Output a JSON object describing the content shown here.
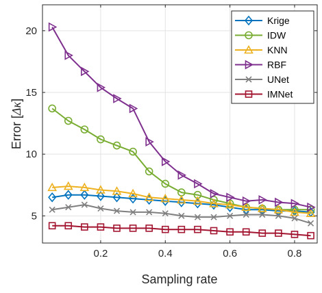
{
  "chart_data": {
    "type": "line",
    "xlabel": "Sampling rate",
    "ylabel_prefix": "Error [",
    "ylabel_symbol": "Δκ",
    "ylabel_suffix": "]",
    "xlim": [
      0.02,
      0.87
    ],
    "ylim": [
      2.8,
      22.1
    ],
    "xticks": [
      0.2,
      0.4,
      0.6,
      0.8
    ],
    "yticks": [
      5,
      10,
      15,
      20
    ],
    "xtick_labels": [
      "0.2",
      "0.4",
      "0.6",
      "0.8"
    ],
    "ytick_labels": [
      "5",
      "10",
      "15",
      "20"
    ],
    "grid": true,
    "legend_position": "top-right",
    "x": [
      0.05,
      0.1,
      0.15,
      0.2,
      0.25,
      0.3,
      0.35,
      0.4,
      0.45,
      0.5,
      0.55,
      0.6,
      0.65,
      0.7,
      0.75,
      0.8,
      0.85
    ],
    "series": [
      {
        "name": "Krige",
        "color": "#0072BD",
        "marker": "diamond",
        "values": [
          6.5,
          6.7,
          6.7,
          6.6,
          6.5,
          6.4,
          6.3,
          6.2,
          6.1,
          6.0,
          5.9,
          5.7,
          5.5,
          5.5,
          5.4,
          5.4,
          5.3
        ]
      },
      {
        "name": "IDW",
        "color": "#77AC30",
        "marker": "circle",
        "values": [
          13.7,
          12.7,
          12.0,
          11.2,
          10.7,
          10.2,
          8.6,
          7.6,
          6.9,
          6.7,
          6.3,
          6.0,
          5.7,
          5.6,
          5.5,
          5.5,
          5.5
        ]
      },
      {
        "name": "KNN",
        "color": "#EDB120",
        "marker": "triangle-up",
        "values": [
          7.3,
          7.4,
          7.3,
          7.1,
          7.0,
          6.8,
          6.5,
          6.4,
          6.3,
          6.2,
          6.0,
          5.9,
          5.7,
          5.6,
          5.5,
          5.3,
          5.2
        ]
      },
      {
        "name": "RBF",
        "color": "#7E2F8E",
        "marker": "triangle-right",
        "values": [
          20.3,
          18.0,
          16.7,
          15.4,
          14.5,
          13.7,
          11.0,
          9.4,
          8.3,
          7.6,
          6.8,
          6.5,
          6.2,
          6.3,
          6.1,
          6.0,
          5.7
        ]
      },
      {
        "name": "UNet",
        "color": "#7F7F7F",
        "marker": "x",
        "values": [
          5.5,
          5.7,
          5.9,
          5.6,
          5.4,
          5.3,
          5.3,
          5.2,
          5.0,
          4.9,
          4.9,
          5.0,
          5.1,
          5.1,
          5.0,
          4.8,
          4.4
        ]
      },
      {
        "name": "IMNet",
        "color": "#A2142F",
        "marker": "square",
        "values": [
          4.2,
          4.2,
          4.1,
          4.1,
          4.0,
          4.0,
          4.0,
          3.9,
          3.9,
          3.9,
          3.8,
          3.7,
          3.7,
          3.6,
          3.6,
          3.5,
          3.4
        ]
      }
    ]
  }
}
